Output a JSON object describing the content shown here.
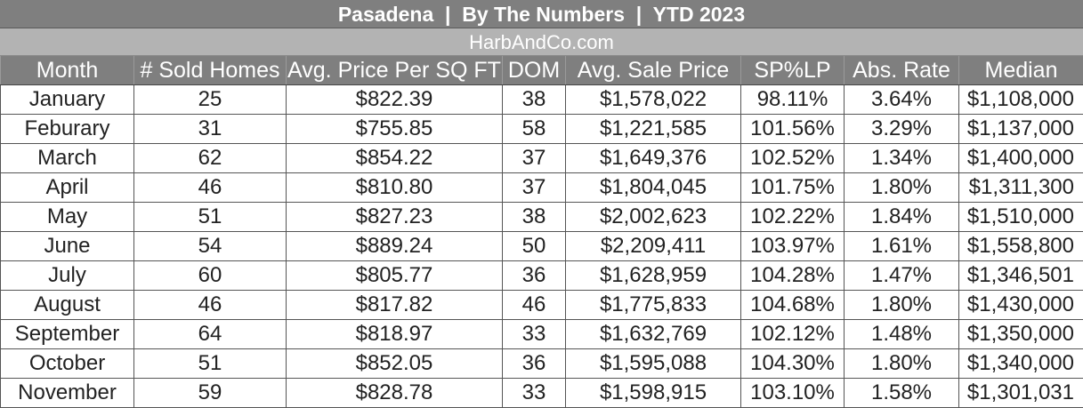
{
  "header": {
    "title": "Pasadena  |  By The Numbers  |  YTD 2023",
    "subtitle": "HarbAndCo.com"
  },
  "colors": {
    "header_bg": "#7f7f7f",
    "subheader_bg": "#b3b3b3",
    "text": "#222222"
  },
  "table": {
    "columns": [
      "Month",
      "# Sold Homes",
      "Avg. Price Per SQ FT",
      "DOM",
      "Avg. Sale Price",
      "SP%LP",
      "Abs. Rate",
      "Median"
    ],
    "rows": [
      [
        "January",
        "25",
        "$822.39",
        "38",
        "$1,578,022",
        "98.11%",
        "3.64%",
        "$1,108,000"
      ],
      [
        "Feburary",
        "31",
        "$755.85",
        "58",
        "$1,221,585",
        "101.56%",
        "3.29%",
        "$1,137,000"
      ],
      [
        "March",
        "62",
        "$854.22",
        "37",
        "$1,649,376",
        "102.52%",
        "1.34%",
        "$1,400,000"
      ],
      [
        "April",
        "46",
        "$810.80",
        "37",
        "$1,804,045",
        "101.75%",
        "1.80%",
        "$1,311,300"
      ],
      [
        "May",
        "51",
        "$827.23",
        "38",
        "$2,002,623",
        "102.22%",
        "1.84%",
        "$1,510,000"
      ],
      [
        "June",
        "54",
        "$889.24",
        "50",
        "$2,209,411",
        "103.97%",
        "1.61%",
        "$1,558,800"
      ],
      [
        "July",
        "60",
        "$805.77",
        "36",
        "$1,628,959",
        "104.28%",
        "1.47%",
        "$1,346,501"
      ],
      [
        "August",
        "46",
        "$817.82",
        "46",
        "$1,775,833",
        "104.68%",
        "1.80%",
        "$1,430,000"
      ],
      [
        "September",
        "64",
        "$818.97",
        "33",
        "$1,632,769",
        "102.12%",
        "1.48%",
        "$1,350,000"
      ],
      [
        "October",
        "51",
        "$852.05",
        "36",
        "$1,595,088",
        "104.30%",
        "1.80%",
        "$1,340,000"
      ],
      [
        "November",
        "59",
        "$828.78",
        "33",
        "$1,598,915",
        "103.10%",
        "1.58%",
        "$1,301,031"
      ]
    ]
  }
}
